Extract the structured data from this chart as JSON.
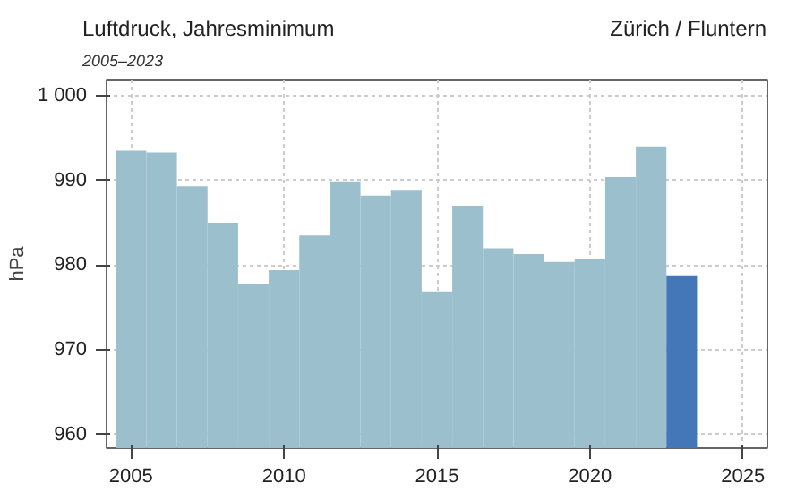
{
  "chart_data": {
    "type": "bar",
    "title": "Luftdruck, Jahresminimum",
    "subtitle": "2005–2023",
    "ylabel": "hPa",
    "annotations": [
      "Zürich / Fluntern"
    ],
    "x": [
      2005,
      2006,
      2007,
      2008,
      2009,
      2010,
      2011,
      2012,
      2013,
      2014,
      2015,
      2016,
      2017,
      2018,
      2019,
      2020,
      2021,
      2022,
      2023
    ],
    "values": [
      993.5,
      993.3,
      989.3,
      985.0,
      977.8,
      979.4,
      983.5,
      989.9,
      988.2,
      988.9,
      976.9,
      987.0,
      982.0,
      981.3,
      980.4,
      980.7,
      990.4,
      994.0,
      978.8
    ],
    "colors": [
      "#9bbfcc",
      "#9bbfcc",
      "#9bbfcc",
      "#9bbfcc",
      "#9bbfcc",
      "#9bbfcc",
      "#9bbfcc",
      "#9bbfcc",
      "#9bbfcc",
      "#9bbfcc",
      "#9bbfcc",
      "#9bbfcc",
      "#9bbfcc",
      "#9bbfcc",
      "#9bbfcc",
      "#9bbfcc",
      "#9bbfcc",
      "#9bbfcc",
      "#4477b8"
    ],
    "xlim": [
      2004.2,
      2025.8
    ],
    "ylim": [
      958.4,
      1001.9
    ],
    "xticks": [
      2005,
      2010,
      2015,
      2020,
      2025
    ],
    "yticks": [
      960,
      970,
      980,
      990,
      {
        "value": 1000,
        "label": "1 000"
      }
    ],
    "grid": true
  }
}
